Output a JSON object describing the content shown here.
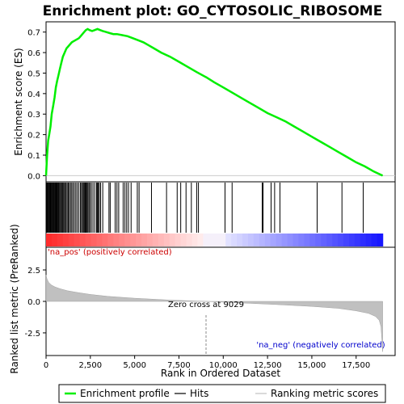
{
  "chart_data": {
    "type": "line",
    "title": "Enrichment plot: GO_CYTOSOLIC_RIBOSOME",
    "top_panel": {
      "ylabel": "Enrichment score (ES)",
      "ylim": [
        -0.03,
        0.75
      ],
      "yticks": [
        "0.0",
        "0.1",
        "0.2",
        "0.3",
        "0.4",
        "0.5",
        "0.6",
        "0.7"
      ],
      "ytick_values": [
        0.0,
        0.1,
        0.2,
        0.3,
        0.4,
        0.5,
        0.6,
        0.7
      ],
      "series": [
        {
          "name": "Enrichment profile",
          "color": "#00ee00",
          "x": [
            0,
            60,
            120,
            180,
            250,
            320,
            400,
            480,
            550,
            620,
            700,
            780,
            860,
            950,
            1050,
            1150,
            1250,
            1350,
            1450,
            1550,
            1650,
            1750,
            1850,
            1950,
            2050,
            2150,
            2250,
            2350,
            2450,
            2600,
            2750,
            2900,
            3050,
            3200,
            3400,
            3600,
            3800,
            4000,
            4300,
            4600,
            4900,
            5200,
            5500,
            5800,
            6100,
            6500,
            7000,
            7500,
            8000,
            8500,
            9029,
            9500,
            10000,
            10500,
            11000,
            11500,
            12000,
            12500,
            13000,
            13500,
            14000,
            14500,
            15000,
            15500,
            16000,
            16500,
            17000,
            17500,
            18000,
            18500,
            19000
          ],
          "y": [
            0.0,
            0.1,
            0.17,
            0.2,
            0.24,
            0.3,
            0.34,
            0.38,
            0.43,
            0.46,
            0.49,
            0.52,
            0.55,
            0.58,
            0.6,
            0.62,
            0.63,
            0.64,
            0.65,
            0.655,
            0.66,
            0.665,
            0.67,
            0.68,
            0.69,
            0.7,
            0.71,
            0.715,
            0.71,
            0.705,
            0.71,
            0.715,
            0.71,
            0.705,
            0.7,
            0.695,
            0.69,
            0.69,
            0.685,
            0.68,
            0.67,
            0.66,
            0.65,
            0.635,
            0.62,
            0.6,
            0.58,
            0.555,
            0.53,
            0.505,
            0.48,
            0.455,
            0.43,
            0.405,
            0.38,
            0.355,
            0.33,
            0.305,
            0.285,
            0.265,
            0.24,
            0.215,
            0.19,
            0.165,
            0.14,
            0.115,
            0.09,
            0.065,
            0.045,
            0.02,
            0.0
          ]
        }
      ]
    },
    "hits_panel": {
      "hit_ranks": [
        30,
        70,
        110,
        150,
        190,
        230,
        270,
        310,
        350,
        390,
        430,
        470,
        510,
        550,
        590,
        630,
        670,
        710,
        760,
        810,
        860,
        910,
        960,
        1010,
        1070,
        1130,
        1190,
        1250,
        1310,
        1380,
        1450,
        1520,
        1600,
        1680,
        1760,
        1850,
        1940,
        2000,
        2060,
        2110,
        2160,
        2210,
        2260,
        2310,
        2360,
        2420,
        2480,
        2560,
        2650,
        2750,
        2850,
        2900,
        2950,
        3000,
        3080,
        3200,
        3550,
        3620,
        3900,
        4000,
        4100,
        4350,
        4450,
        4550,
        4650,
        4800,
        5150,
        5250,
        5950,
        6800,
        7400,
        7600,
        7900,
        8200,
        8500,
        8600,
        10100,
        10500,
        12200,
        12250,
        12700,
        12900,
        13200,
        15300,
        16700,
        17900
      ],
      "color_scale": "red (positive) to blue (negative)"
    },
    "bottom_panel": {
      "ylabel": "Ranked list metric (PreRanked)",
      "xlabel": "Rank in Ordered Dataset",
      "ylim": [
        -4.3,
        4.3
      ],
      "yticks": [
        "2.5",
        "0.0",
        "-2.5"
      ],
      "ytick_values": [
        2.5,
        0.0,
        -2.5
      ],
      "xticks": [
        "0",
        "2,500",
        "5,000",
        "7,500",
        "10,000",
        "12,500",
        "15,000",
        "17,500"
      ],
      "xtick_values": [
        0,
        2500,
        5000,
        7500,
        10000,
        12500,
        15000,
        17500
      ],
      "xlim": [
        0,
        19700
      ],
      "n_ranks": 19000,
      "metric_profile": {
        "x": [
          0,
          50,
          150,
          300,
          500,
          800,
          1200,
          1800,
          2500,
          3500,
          5000,
          7000,
          9029,
          11000,
          13000,
          15000,
          16500,
          17500,
          18200,
          18600,
          18800,
          18900,
          19000
        ],
        "y": [
          2.1,
          1.8,
          1.5,
          1.3,
          1.15,
          1.0,
          0.85,
          0.7,
          0.55,
          0.4,
          0.25,
          0.1,
          0.0,
          -0.12,
          -0.25,
          -0.4,
          -0.55,
          -0.75,
          -0.95,
          -1.2,
          -1.5,
          -2.0,
          -4.0
        ]
      },
      "annotations": {
        "positive_label": "'na_pos' (positively correlated)",
        "negative_label": "'na_neg' (negatively correlated)",
        "zero_cross": "Zero cross at 9029",
        "zero_cross_rank": 9029
      }
    },
    "legend": {
      "placement": "bottom",
      "items": [
        {
          "label": "Enrichment profile",
          "color": "#00ee00",
          "style": "line"
        },
        {
          "label": "Hits",
          "color": "#000000",
          "style": "line"
        },
        {
          "label": "Ranking metric scores",
          "color": "#c0c0c0",
          "style": "line"
        }
      ]
    }
  }
}
